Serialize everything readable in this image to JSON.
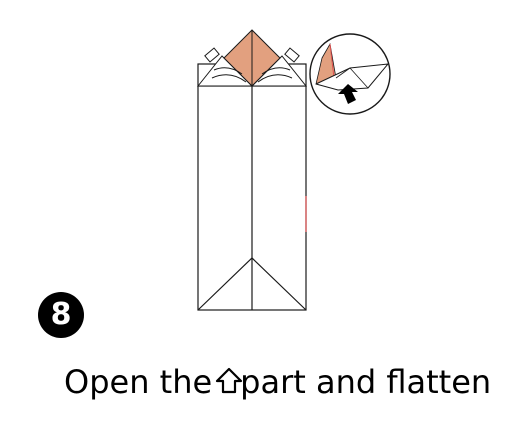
{
  "step": {
    "number": "8"
  },
  "instruction": {
    "before_icon": "Open the",
    "icon": "up-arrow-outline-icon",
    "after_icon": "part and flatten"
  },
  "colors": {
    "paper_colored_side": "#e2a07f",
    "detail_red": "#e05050",
    "line": "#1a1a1a",
    "arrow_fill": "#000000"
  }
}
